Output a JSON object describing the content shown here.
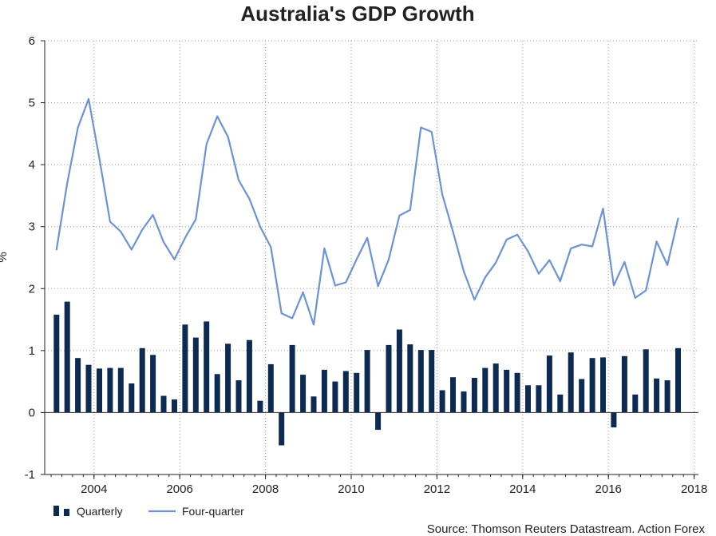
{
  "chart_data": {
    "type": "bar+line",
    "title": "Australia's GDP Growth",
    "ylabel": "%",
    "ylim": [
      -1,
      6
    ],
    "yticks": [
      "-1",
      "0",
      "1",
      "2",
      "3",
      "4",
      "5",
      "6"
    ],
    "xticks": [
      "2004",
      "2006",
      "2008",
      "2010",
      "2012",
      "2014",
      "2016",
      "2018"
    ],
    "grid": true,
    "legend_position": "bottom-left",
    "source": "Source: Thomson Reuters Datastream. Action Forex",
    "x": [
      "2003Q3",
      "2003Q4",
      "2004Q1",
      "2004Q2",
      "2004Q3",
      "2004Q4",
      "2005Q1",
      "2005Q2",
      "2005Q3",
      "2005Q4",
      "2006Q1",
      "2006Q2",
      "2006Q3",
      "2006Q4",
      "2007Q1",
      "2007Q2",
      "2007Q3",
      "2007Q4",
      "2008Q1",
      "2008Q2",
      "2008Q3",
      "2008Q4",
      "2009Q1",
      "2009Q2",
      "2009Q3",
      "2009Q4",
      "2010Q1",
      "2010Q2",
      "2010Q3",
      "2010Q4",
      "2011Q1",
      "2011Q2",
      "2011Q3",
      "2011Q4",
      "2012Q1",
      "2012Q2",
      "2012Q3",
      "2012Q4",
      "2013Q1",
      "2013Q2",
      "2013Q3",
      "2013Q4",
      "2014Q1",
      "2014Q2",
      "2014Q3",
      "2014Q4",
      "2015Q1",
      "2015Q2",
      "2015Q3",
      "2015Q4",
      "2016Q1",
      "2016Q2",
      "2016Q3",
      "2016Q4",
      "2017Q1",
      "2017Q2",
      "2017Q3",
      "2017Q4",
      "2018Q1"
    ],
    "series": [
      {
        "name": "Quarterly",
        "type": "bar",
        "color": "#0d2a52",
        "values": [
          1.58,
          1.79,
          0.88,
          0.77,
          0.71,
          0.72,
          0.72,
          0.47,
          1.04,
          0.93,
          0.27,
          0.21,
          1.42,
          1.21,
          1.47,
          0.62,
          1.11,
          0.52,
          1.17,
          0.19,
          0.78,
          -0.53,
          1.09,
          0.61,
          0.26,
          0.69,
          0.5,
          0.67,
          0.64,
          1.01,
          -0.28,
          1.09,
          1.34,
          1.1,
          1.01,
          1.01,
          0.36,
          0.57,
          0.34,
          0.56,
          0.72,
          0.79,
          0.69,
          0.64,
          0.44,
          0.44,
          0.92,
          0.29,
          0.97,
          0.54,
          0.88,
          0.89,
          -0.24,
          0.91,
          0.29,
          1.02,
          0.55,
          0.52,
          1.04
        ]
      },
      {
        "name": "Four-quarter",
        "type": "line",
        "color": "#6b93d6",
        "values": [
          2.63,
          3.7,
          4.6,
          5.06,
          4.1,
          3.08,
          2.92,
          2.63,
          2.95,
          3.19,
          2.75,
          2.47,
          2.82,
          3.12,
          4.33,
          4.78,
          4.45,
          3.75,
          3.45,
          3.0,
          2.67,
          1.6,
          1.52,
          1.94,
          1.42,
          2.65,
          2.05,
          2.1,
          2.47,
          2.82,
          2.04,
          2.47,
          3.18,
          3.27,
          4.6,
          4.53,
          3.52,
          2.92,
          2.28,
          1.82,
          2.18,
          2.42,
          2.79,
          2.87,
          2.6,
          2.24,
          2.46,
          2.12,
          2.65,
          2.71,
          2.68,
          3.29,
          2.05,
          2.43,
          1.85,
          1.97,
          2.76,
          2.38,
          3.13
        ]
      }
    ]
  }
}
